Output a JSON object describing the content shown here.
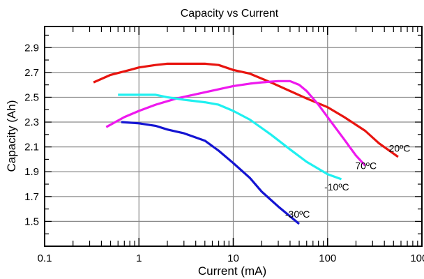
{
  "chart_data": {
    "type": "line",
    "title": "Capacity vs Current",
    "xlabel": "Current (mA)",
    "ylabel": "Capacity (Ah)",
    "x_scale": "log",
    "xlim": [
      0.1,
      1000
    ],
    "ylim": [
      1.3,
      3.07
    ],
    "x_ticks": [
      0.1,
      1,
      10,
      100,
      1000
    ],
    "x_tick_labels": [
      "0.1",
      "1",
      "10",
      "100",
      "1000"
    ],
    "y_ticks": [
      1.5,
      1.7,
      1.9,
      2.1,
      2.3,
      2.5,
      2.7,
      2.9
    ],
    "y_tick_labels": [
      "1.5",
      "1.7",
      "1.9",
      "2.1",
      "2.3",
      "2.5",
      "2.7",
      "2.9"
    ],
    "grid": true,
    "series": [
      {
        "name": "20ºC",
        "color": "#e8140f",
        "x": [
          0.33,
          0.5,
          0.8,
          1.0,
          1.5,
          2,
          3,
          5,
          7,
          10,
          15,
          25,
          40,
          60,
          100,
          150,
          250,
          350,
          560
        ],
        "y": [
          2.62,
          2.68,
          2.72,
          2.74,
          2.76,
          2.77,
          2.77,
          2.77,
          2.76,
          2.72,
          2.69,
          2.62,
          2.55,
          2.49,
          2.42,
          2.34,
          2.23,
          2.13,
          2.02
        ]
      },
      {
        "name": "70ºC",
        "color": "#ee19ee",
        "x": [
          0.45,
          0.7,
          1.0,
          1.5,
          2.5,
          5,
          10,
          15,
          20,
          30,
          40,
          50,
          60,
          80,
          100,
          150,
          200,
          250
        ],
        "y": [
          2.26,
          2.34,
          2.39,
          2.44,
          2.49,
          2.54,
          2.59,
          2.61,
          2.62,
          2.63,
          2.63,
          2.6,
          2.55,
          2.44,
          2.34,
          2.16,
          2.03,
          1.95
        ]
      },
      {
        "name": "-10ºC",
        "color": "#1ff0f0",
        "x": [
          0.6,
          1.0,
          1.5,
          2.0,
          3,
          5,
          7,
          10,
          15,
          25,
          40,
          60,
          100,
          140
        ],
        "y": [
          2.52,
          2.52,
          2.52,
          2.5,
          2.48,
          2.46,
          2.44,
          2.39,
          2.32,
          2.2,
          2.08,
          1.98,
          1.88,
          1.84
        ]
      },
      {
        "name": "-30ºC",
        "color": "#1414d2",
        "x": [
          0.65,
          1.0,
          1.5,
          2.0,
          3,
          5,
          7,
          10,
          15,
          20,
          30,
          50
        ],
        "y": [
          2.3,
          2.29,
          2.27,
          2.24,
          2.21,
          2.15,
          2.07,
          1.97,
          1.85,
          1.74,
          1.62,
          1.48
        ]
      }
    ],
    "series_labels": [
      {
        "text": "20ºC",
        "x": 580,
        "y": 2.06
      },
      {
        "text": "70ºC",
        "x": 255,
        "y": 1.92
      },
      {
        "text": "-10ºC",
        "x": 125,
        "y": 1.75
      },
      {
        "text": "-30ºC",
        "x": 48,
        "y": 1.53
      }
    ]
  }
}
